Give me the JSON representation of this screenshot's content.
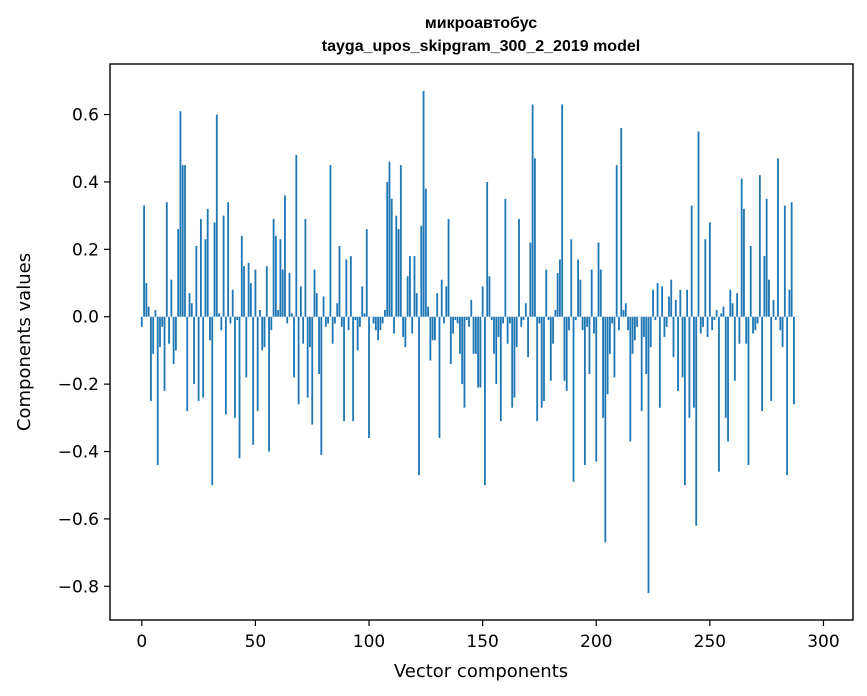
{
  "chart_data": {
    "type": "bar",
    "title": "микроавтобус",
    "subtitle": "tayga_upos_skipgram_300_2_2019 model",
    "xlabel": "Vector components",
    "ylabel": "Components values",
    "xlim": [
      -14,
      313
    ],
    "ylim": [
      -0.9,
      0.75
    ],
    "xticks": [
      0,
      50,
      100,
      150,
      200,
      250,
      300
    ],
    "xtick_labels": [
      "0",
      "50",
      "100",
      "150",
      "200",
      "250",
      "300"
    ],
    "yticks": [
      -0.8,
      -0.6,
      -0.4,
      -0.2,
      0.0,
      0.2,
      0.4,
      0.6
    ],
    "ytick_labels": [
      "−0.8",
      "−0.6",
      "−0.4",
      "−0.2",
      "0.0",
      "0.2",
      "0.4",
      "0.6"
    ],
    "bar_color": "#1f77b4",
    "grid": false,
    "values": [
      -0.03,
      0.33,
      0.1,
      0.03,
      -0.25,
      -0.11,
      0.02,
      -0.44,
      -0.09,
      -0.03,
      -0.22,
      0.34,
      -0.08,
      0.11,
      -0.14,
      -0.1,
      0.26,
      0.61,
      0.45,
      0.45,
      -0.28,
      0.07,
      0.04,
      -0.2,
      0.21,
      -0.25,
      0.29,
      -0.24,
      0.23,
      0.32,
      -0.07,
      -0.5,
      0.28,
      0.6,
      0.01,
      -0.04,
      0.3,
      -0.29,
      0.34,
      -0.02,
      0.08,
      -0.3,
      -0.01,
      -0.42,
      0.24,
      0.15,
      -0.18,
      0.16,
      0.1,
      -0.38,
      0.14,
      -0.28,
      0.02,
      -0.1,
      -0.09,
      0.15,
      -0.4,
      -0.04,
      0.29,
      0.24,
      0.02,
      0.23,
      0.14,
      0.36,
      -0.02,
      0.13,
      0.01,
      -0.18,
      0.48,
      -0.26,
      0.09,
      -0.08,
      0.29,
      -0.24,
      -0.09,
      -0.32,
      0.14,
      0.07,
      -0.17,
      -0.41,
      0.06,
      -0.03,
      -0.02,
      0.45,
      -0.08,
      -0.02,
      0.04,
      0.21,
      -0.03,
      -0.31,
      0.17,
      -0.04,
      0.18,
      -0.31,
      -0.01,
      -0.1,
      -0.03,
      0.09,
      0.01,
      0.26,
      -0.36,
      0.0,
      -0.02,
      -0.04,
      -0.07,
      -0.04,
      -0.02,
      0.02,
      0.4,
      0.46,
      0.35,
      -0.05,
      0.3,
      0.26,
      0.45,
      -0.06,
      -0.09,
      0.12,
      0.18,
      -0.05,
      0.18,
      0.07,
      -0.47,
      0.27,
      0.67,
      0.38,
      0.03,
      -0.13,
      -0.07,
      -0.07,
      0.07,
      -0.36,
      0.11,
      -0.02,
      0.09,
      0.29,
      -0.14,
      -0.05,
      -0.01,
      -0.02,
      -0.11,
      -0.2,
      -0.27,
      -0.01,
      -0.03,
      0.05,
      -0.11,
      -0.11,
      -0.21,
      -0.21,
      0.09,
      -0.5,
      0.4,
      0.12,
      -0.01,
      -0.11,
      -0.2,
      -0.06,
      -0.31,
      -0.02,
      0.35,
      -0.08,
      -0.02,
      -0.27,
      -0.24,
      -0.09,
      0.29,
      -0.03,
      -0.01,
      0.04,
      -0.12,
      0.22,
      0.63,
      0.47,
      -0.31,
      -0.02,
      -0.27,
      -0.25,
      0.14,
      -0.01,
      -0.19,
      -0.08,
      0.02,
      0.13,
      0.17,
      0.63,
      -0.19,
      -0.22,
      -0.04,
      0.23,
      -0.49,
      -0.01,
      0.17,
      0.11,
      -0.04,
      -0.44,
      -0.03,
      -0.17,
      0.14,
      -0.05,
      -0.43,
      0.22,
      0.14,
      -0.3,
      -0.67,
      -0.23,
      -0.11,
      -0.02,
      -0.18,
      0.45,
      -0.04,
      0.56,
      0.02,
      0.04,
      -0.04,
      -0.37,
      -0.11,
      -0.07,
      -0.03,
      0.0,
      -0.28,
      -0.06,
      -0.17,
      -0.82,
      -0.09,
      0.08,
      -0.01,
      0.1,
      -0.27,
      0.09,
      -0.06,
      -0.03,
      0.06,
      0.11,
      -0.12,
      0.05,
      -0.22,
      0.08,
      -0.18,
      -0.5,
      0.08,
      -0.3,
      0.33,
      -0.27,
      -0.62,
      0.55,
      -0.05,
      -0.03,
      0.23,
      -0.06,
      0.28,
      -0.04,
      -0.01,
      0.02,
      -0.46,
      0.01,
      0.03,
      -0.3,
      -0.37,
      0.08,
      0.04,
      -0.19,
      0.07,
      -0.08,
      0.41,
      0.32,
      -0.08,
      -0.44,
      0.21,
      -0.05,
      -0.04,
      -0.02,
      0.42,
      -0.28,
      0.18,
      0.35,
      0.11,
      -0.25,
      0.05,
      -0.01,
      0.47,
      -0.04,
      -0.09,
      0.33,
      -0.47,
      0.08,
      0.34,
      -0.26,
      0.0,
      0.0
    ]
  }
}
